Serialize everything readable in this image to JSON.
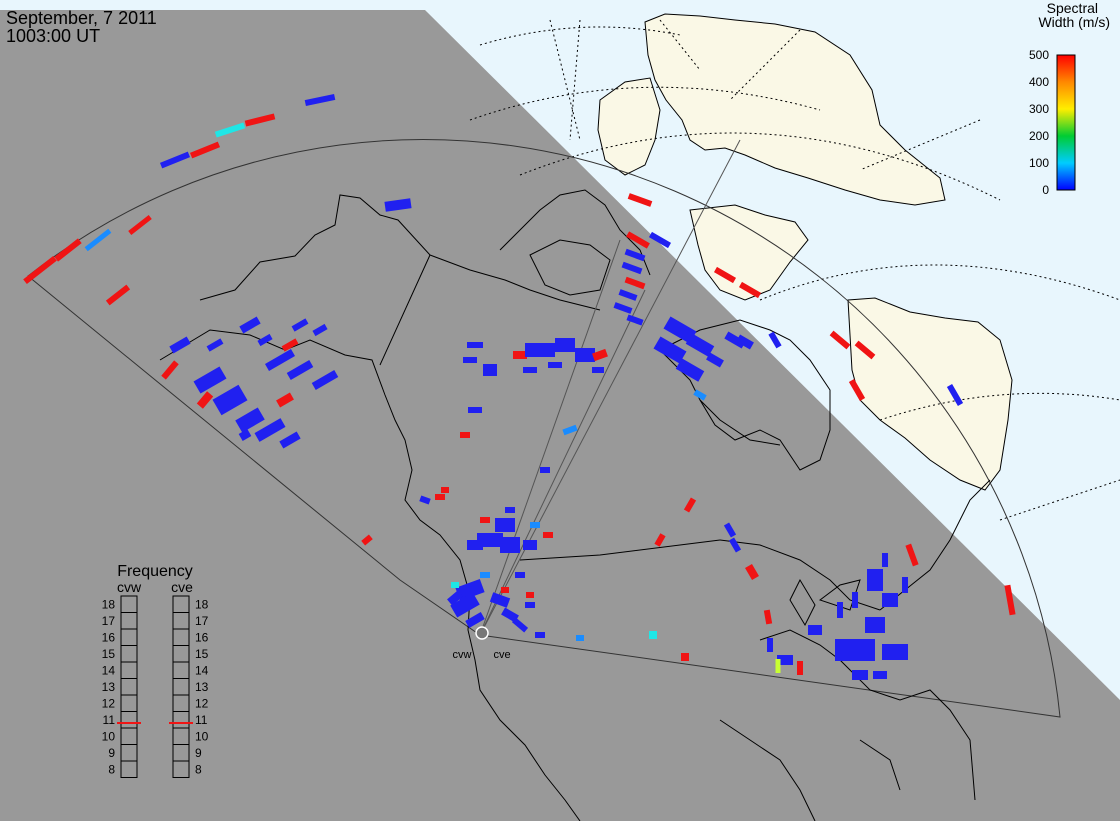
{
  "header": {
    "date": "September, 7 2011",
    "time": "1003:00 UT"
  },
  "colorbar": {
    "title_line1": "Spectral",
    "title_line2": "Width (m/s)",
    "ticks": [
      "500",
      "400",
      "300",
      "200",
      "100",
      "0"
    ]
  },
  "frequency": {
    "title": "Frequency",
    "gauges": [
      {
        "name": "cvw",
        "value": 10.8
      },
      {
        "name": "cve",
        "value": 10.8
      }
    ],
    "ticks": [
      "18",
      "17",
      "16",
      "15",
      "14",
      "13",
      "12",
      "11",
      "10",
      "9",
      "8"
    ]
  },
  "stations": [
    {
      "name": "cvw"
    },
    {
      "name": "cve"
    }
  ],
  "colors": {
    "night": "#999999",
    "day_sea": "#e8f6fd",
    "day_land": "#faf8e6",
    "low_width": "#2020f0",
    "mid_width": "#1a8cff",
    "cyan_width": "#1fe6e6",
    "high_width": "#f01414",
    "yellow_width": "#c8ff32"
  }
}
